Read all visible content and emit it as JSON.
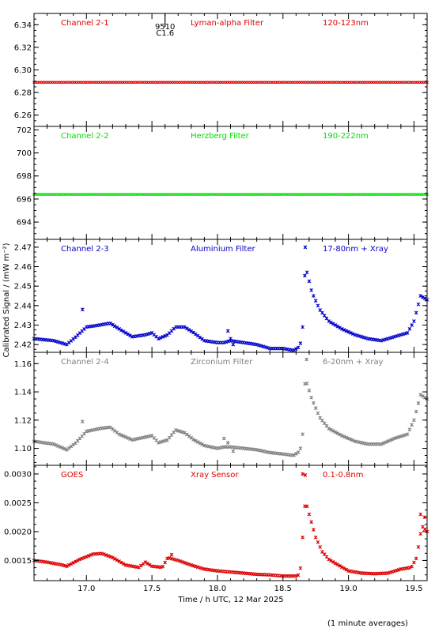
{
  "chart_data": {
    "type": "scatter",
    "xlabel": "Time / h UTC, 12 Mar 2025",
    "ylabel": "Calibrated Signal / (mW m⁻²)",
    "footnote": "(1 minute averages)",
    "xlim": [
      16.6,
      19.6
    ],
    "xticks": [
      17.0,
      17.5,
      18.0,
      18.5,
      19.0,
      19.5
    ],
    "xtick_labels": [
      "17.0",
      "17.5",
      "18.0",
      "18.5",
      "19.0",
      "19.5"
    ],
    "flare_marker": {
      "x": 17.6,
      "labels": [
        "9510",
        "C1.6"
      ]
    },
    "panels": [
      {
        "channel": "Channel 2-1",
        "filter": "Lyman-alpha Filter",
        "band": "120-123nm",
        "color": "#dd0000",
        "ylim": [
          6.25,
          6.35
        ],
        "yticks": [
          "6.26",
          "6.28",
          "6.30",
          "6.32",
          "6.34"
        ],
        "yticks_values": [
          6.26,
          6.28,
          6.3,
          6.32,
          6.34
        ],
        "knots": [
          [
            16.6,
            6.289
          ],
          [
            19.6,
            6.289
          ]
        ]
      },
      {
        "channel": "Channel 2-2",
        "filter": "Herzberg Filter",
        "band": "190-222nm",
        "color": "#00dd00",
        "ylim": [
          692.5,
          702.3
        ],
        "yticks": [
          "694",
          "696",
          "698",
          "700",
          "702"
        ],
        "yticks_values": [
          694,
          696,
          698,
          700,
          702
        ],
        "knots": [
          [
            16.6,
            696.4
          ],
          [
            19.6,
            696.4
          ]
        ]
      },
      {
        "channel": "Channel 2-3",
        "filter": "Aluminium Filter",
        "band": "17-80nm + Xray",
        "color": "#0000cc",
        "ylim": [
          2.416,
          2.474
        ],
        "yticks": [
          "2.42",
          "2.43",
          "2.44",
          "2.45",
          "2.46",
          "2.47"
        ],
        "yticks_values": [
          2.42,
          2.43,
          2.44,
          2.45,
          2.46,
          2.47
        ],
        "knots": [
          [
            16.6,
            2.423
          ],
          [
            16.75,
            2.422
          ],
          [
            16.85,
            2.42
          ],
          [
            16.92,
            2.424
          ],
          [
            17.0,
            2.429
          ],
          [
            17.1,
            2.43
          ],
          [
            17.18,
            2.431
          ],
          [
            17.25,
            2.428
          ],
          [
            17.35,
            2.424
          ],
          [
            17.45,
            2.425
          ],
          [
            17.5,
            2.426
          ],
          [
            17.55,
            2.423
          ],
          [
            17.62,
            2.425
          ],
          [
            17.68,
            2.429
          ],
          [
            17.75,
            2.429
          ],
          [
            17.82,
            2.426
          ],
          [
            17.9,
            2.422
          ],
          [
            18.0,
            2.421
          ],
          [
            18.05,
            2.421
          ],
          [
            18.1,
            2.422
          ],
          [
            18.2,
            2.421
          ],
          [
            18.3,
            2.42
          ],
          [
            18.4,
            2.418
          ],
          [
            18.5,
            2.418
          ],
          [
            18.58,
            2.417
          ],
          [
            18.63,
            2.419
          ],
          [
            18.65,
            2.429
          ],
          [
            18.66,
            2.454
          ],
          [
            18.68,
            2.458
          ],
          [
            18.72,
            2.447
          ],
          [
            18.78,
            2.438
          ],
          [
            18.85,
            2.432
          ],
          [
            18.95,
            2.428
          ],
          [
            19.05,
            2.425
          ],
          [
            19.15,
            2.423
          ],
          [
            19.25,
            2.422
          ],
          [
            19.35,
            2.424
          ],
          [
            19.45,
            2.426
          ],
          [
            19.5,
            2.432
          ],
          [
            19.55,
            2.445
          ],
          [
            19.6,
            2.443
          ]
        ],
        "outliers": [
          [
            16.97,
            2.438
          ],
          [
            18.08,
            2.427
          ],
          [
            18.1,
            2.423
          ],
          [
            18.12,
            2.42
          ],
          [
            18.67,
            2.47
          ]
        ]
      },
      {
        "channel": "Channel 2-4",
        "filter": "Zirconium Filter",
        "band": "6-20nm + Xray",
        "color": "#808080",
        "ylim": [
          1.088,
          1.168
        ],
        "yticks": [
          "1.10",
          "1.12",
          "1.14",
          "1.16"
        ],
        "yticks_values": [
          1.1,
          1.12,
          1.14,
          1.16
        ],
        "knots": [
          [
            16.6,
            1.105
          ],
          [
            16.75,
            1.103
          ],
          [
            16.85,
            1.099
          ],
          [
            16.92,
            1.104
          ],
          [
            17.0,
            1.112
          ],
          [
            17.1,
            1.114
          ],
          [
            17.18,
            1.115
          ],
          [
            17.25,
            1.11
          ],
          [
            17.35,
            1.106
          ],
          [
            17.45,
            1.108
          ],
          [
            17.5,
            1.109
          ],
          [
            17.55,
            1.104
          ],
          [
            17.62,
            1.106
          ],
          [
            17.68,
            1.113
          ],
          [
            17.75,
            1.111
          ],
          [
            17.82,
            1.106
          ],
          [
            17.9,
            1.102
          ],
          [
            18.0,
            1.1
          ],
          [
            18.05,
            1.101
          ],
          [
            18.1,
            1.101
          ],
          [
            18.2,
            1.1
          ],
          [
            18.3,
            1.099
          ],
          [
            18.4,
            1.097
          ],
          [
            18.5,
            1.096
          ],
          [
            18.58,
            1.095
          ],
          [
            18.63,
            1.098
          ],
          [
            18.65,
            1.11
          ],
          [
            18.66,
            1.145
          ],
          [
            18.68,
            1.147
          ],
          [
            18.72,
            1.135
          ],
          [
            18.78,
            1.122
          ],
          [
            18.85,
            1.114
          ],
          [
            18.95,
            1.109
          ],
          [
            19.05,
            1.105
          ],
          [
            19.15,
            1.103
          ],
          [
            19.25,
            1.103
          ],
          [
            19.35,
            1.107
          ],
          [
            19.45,
            1.11
          ],
          [
            19.5,
            1.12
          ],
          [
            19.55,
            1.138
          ],
          [
            19.6,
            1.135
          ]
        ],
        "outliers": [
          [
            16.97,
            1.119
          ],
          [
            18.05,
            1.107
          ],
          [
            18.08,
            1.104
          ],
          [
            18.12,
            1.098
          ],
          [
            18.68,
            1.163
          ]
        ]
      },
      {
        "channel": "GOES",
        "filter": "Xray Sensor",
        "band": "0.1-0.8nm",
        "color": "#dd0000",
        "ylim": [
          0.00115,
          0.00315
        ],
        "yticks": [
          "0.0015",
          "0.0020",
          "0.0025",
          "0.0030"
        ],
        "yticks_values": [
          0.0015,
          0.002,
          0.0025,
          0.003
        ],
        "knots": [
          [
            16.6,
            0.0015
          ],
          [
            16.7,
            0.00147
          ],
          [
            16.8,
            0.00143
          ],
          [
            16.85,
            0.0014
          ],
          [
            16.95,
            0.00152
          ],
          [
            17.05,
            0.00161
          ],
          [
            17.12,
            0.00162
          ],
          [
            17.2,
            0.00155
          ],
          [
            17.3,
            0.00142
          ],
          [
            17.4,
            0.00138
          ],
          [
            17.45,
            0.00147
          ],
          [
            17.5,
            0.0014
          ],
          [
            17.58,
            0.00138
          ],
          [
            17.62,
            0.00155
          ],
          [
            17.7,
            0.0015
          ],
          [
            17.8,
            0.00142
          ],
          [
            17.9,
            0.00135
          ],
          [
            18.0,
            0.00132
          ],
          [
            18.1,
            0.0013
          ],
          [
            18.2,
            0.00128
          ],
          [
            18.3,
            0.00126
          ],
          [
            18.4,
            0.00125
          ],
          [
            18.5,
            0.00123
          ],
          [
            18.6,
            0.00123
          ],
          [
            18.63,
            0.00126
          ],
          [
            18.65,
            0.0019
          ],
          [
            18.67,
            0.00255
          ],
          [
            18.7,
            0.0023
          ],
          [
            18.75,
            0.0019
          ],
          [
            18.8,
            0.00165
          ],
          [
            18.85,
            0.00152
          ],
          [
            18.9,
            0.00145
          ],
          [
            19.0,
            0.00132
          ],
          [
            19.1,
            0.00128
          ],
          [
            19.2,
            0.00127
          ],
          [
            19.3,
            0.00128
          ],
          [
            19.4,
            0.00135
          ],
          [
            19.48,
            0.00138
          ],
          [
            19.52,
            0.00155
          ],
          [
            19.56,
            0.0021
          ],
          [
            19.6,
            0.002
          ]
        ],
        "outliers": [
          [
            18.65,
            0.003
          ],
          [
            18.67,
            0.00298
          ],
          [
            17.65,
            0.0016
          ],
          [
            19.55,
            0.0023
          ],
          [
            19.58,
            0.00225
          ]
        ]
      }
    ]
  }
}
